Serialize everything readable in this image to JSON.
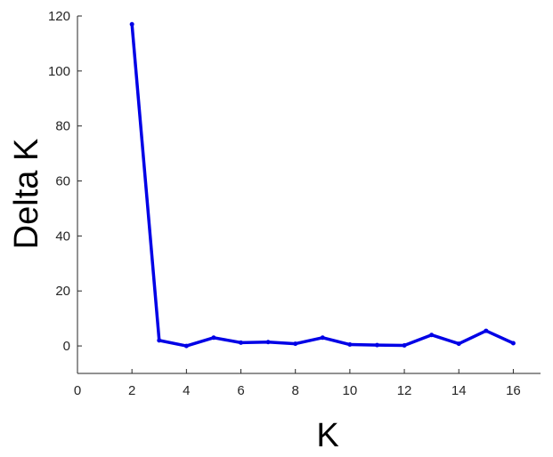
{
  "chart_data": {
    "type": "line",
    "title": "",
    "xlabel": "K",
    "ylabel": "Delta K",
    "xlim": [
      0,
      17
    ],
    "ylim": [
      -10,
      120
    ],
    "xticks": [
      0,
      2,
      4,
      6,
      8,
      10,
      12,
      14,
      16
    ],
    "yticks": [
      0,
      20,
      40,
      60,
      80,
      100,
      120
    ],
    "grid": false,
    "series": [
      {
        "color": "#0000e6",
        "x": [
          2,
          3,
          4,
          5,
          6,
          7,
          8,
          9,
          10,
          11,
          12,
          13,
          14,
          15,
          16
        ],
        "y": [
          117,
          2,
          0,
          3,
          1.2,
          1.4,
          0.8,
          3,
          0.5,
          0.3,
          0.2,
          4,
          0.8,
          5.5,
          1
        ]
      }
    ]
  }
}
